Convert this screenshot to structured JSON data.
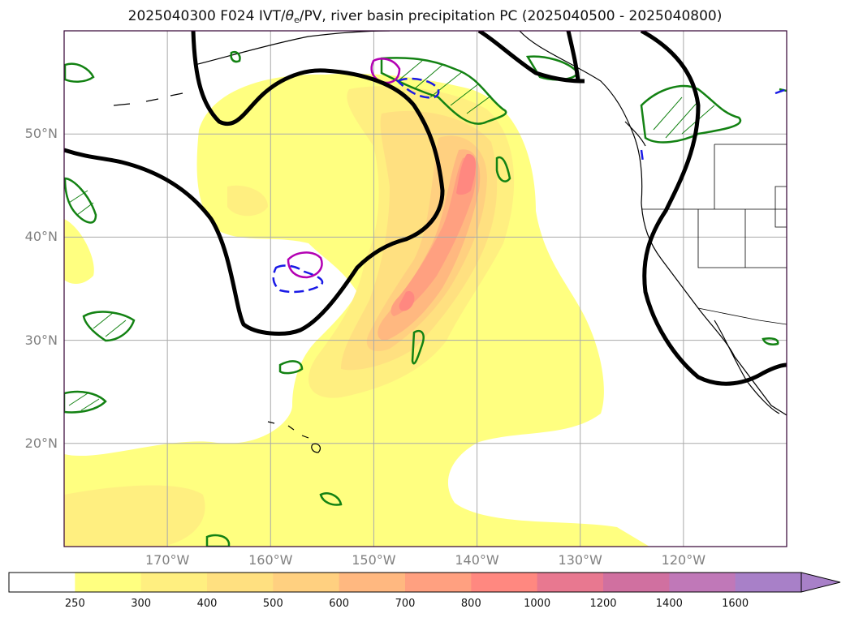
{
  "title": {
    "prefix": "2025040300 F024 IVT/",
    "theta": "θ",
    "theta_sub": "e",
    "suffix": "/PV, river basin precipitation PC (2025040500 - 2025040800)"
  },
  "map": {
    "lon_range": [
      -180,
      -110
    ],
    "lat_range": [
      10,
      60
    ],
    "lat_labels": [
      {
        "lat": 50,
        "text": "50°N"
      },
      {
        "lat": 40,
        "text": "40°N"
      },
      {
        "lat": 30,
        "text": "30°N"
      },
      {
        "lat": 20,
        "text": "20°N"
      }
    ],
    "lon_labels": [
      {
        "lon": -170,
        "text": "170°W"
      },
      {
        "lon": -160,
        "text": "160°W"
      },
      {
        "lon": -150,
        "text": "150°W"
      },
      {
        "lon": -140,
        "text": "140°W"
      },
      {
        "lon": -130,
        "text": "130°W"
      },
      {
        "lon": -120,
        "text": "120°W"
      }
    ],
    "gridlines": true
  },
  "colorbar": {
    "levels": [
      "250",
      "300",
      "400",
      "500",
      "600",
      "700",
      "800",
      "1000",
      "1200",
      "1400",
      "1600"
    ],
    "colors": [
      "#ffffff",
      "#ffff80",
      "#ffef80",
      "#ffe080",
      "#ffd080",
      "#ffb880",
      "#ffa080",
      "#ff8880",
      "#e87890",
      "#d070a0",
      "#c078b8",
      "#a880c8"
    ],
    "extend": "max"
  },
  "colors": {
    "ivt_contour": "#000000",
    "precip_hatch": "#138213",
    "pv_line": "#1a1ae6",
    "theta_line": "#b300b3"
  }
}
